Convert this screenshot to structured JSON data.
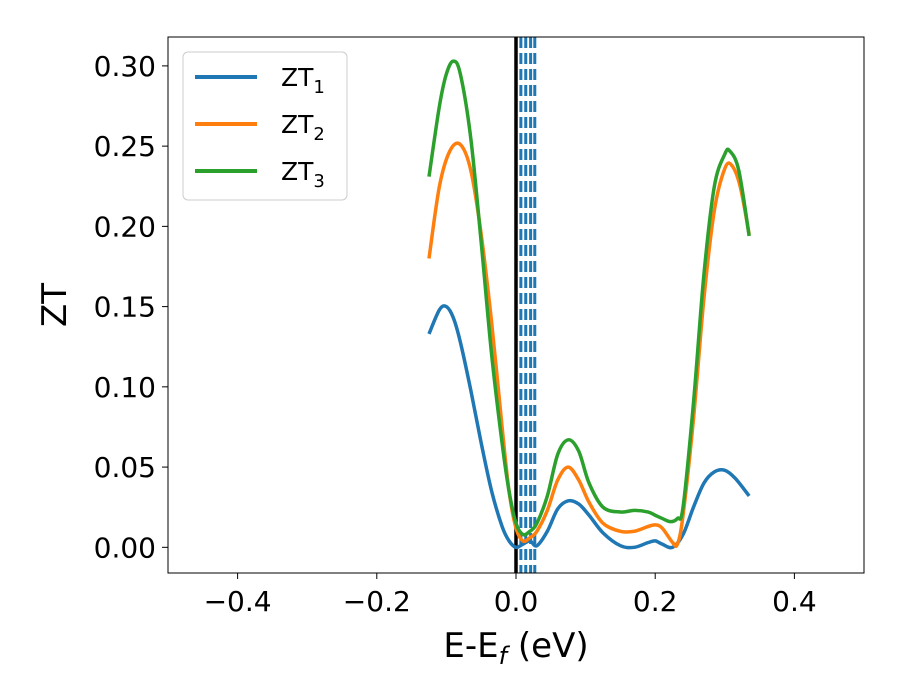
{
  "chart_data": {
    "type": "line",
    "xlabel": "E-E",
    "xlabel_sub": "f",
    "xlabel_unit": " (eV)",
    "ylabel": "ZT",
    "xlim": [
      -0.5,
      0.5
    ],
    "ylim": [
      -0.016,
      0.318
    ],
    "xticks": [
      -0.4,
      -0.2,
      0.0,
      0.2,
      0.4
    ],
    "xtick_labels": [
      "−0.4",
      "−0.2",
      "0.0",
      "0.2",
      "0.4"
    ],
    "yticks": [
      0.0,
      0.05,
      0.1,
      0.15,
      0.2,
      0.25,
      0.3
    ],
    "ytick_labels": [
      "0.00",
      "0.05",
      "0.10",
      "0.15",
      "0.20",
      "0.25",
      "0.30"
    ],
    "grid": false,
    "legend_position": "top-left",
    "vline_solid": {
      "x": 0.0,
      "color": "#000000"
    },
    "vlines_dashed": {
      "x": [
        0.007,
        0.014,
        0.021,
        0.027
      ],
      "color": "#1f77b4"
    },
    "series": [
      {
        "name": "ZT",
        "subscript": "1",
        "color": "#1f77b4",
        "x": [
          -0.125,
          -0.11,
          -0.1,
          -0.09,
          -0.08,
          -0.065,
          -0.05,
          -0.035,
          -0.02,
          -0.01,
          0.0,
          0.01,
          0.02,
          0.03,
          0.045,
          0.06,
          0.075,
          0.09,
          0.105,
          0.125,
          0.15,
          0.17,
          0.19,
          0.2,
          0.21,
          0.225,
          0.24,
          0.255,
          0.27,
          0.285,
          0.3,
          0.315,
          0.335
        ],
        "y": [
          0.133,
          0.148,
          0.15,
          0.143,
          0.128,
          0.098,
          0.065,
          0.035,
          0.013,
          0.004,
          0.0,
          0.002,
          0.004,
          0.001,
          0.01,
          0.024,
          0.029,
          0.027,
          0.02,
          0.009,
          0.001,
          0.0,
          0.003,
          0.004,
          0.002,
          0.0,
          0.008,
          0.025,
          0.04,
          0.047,
          0.048,
          0.043,
          0.032
        ]
      },
      {
        "name": "ZT",
        "subscript": "2",
        "color": "#ff7f0e",
        "x": [
          -0.125,
          -0.11,
          -0.095,
          -0.08,
          -0.065,
          -0.05,
          -0.035,
          -0.02,
          -0.01,
          0.0,
          0.01,
          0.02,
          0.03,
          0.045,
          0.06,
          0.075,
          0.09,
          0.105,
          0.125,
          0.15,
          0.17,
          0.19,
          0.2,
          0.21,
          0.225,
          0.232,
          0.24,
          0.255,
          0.27,
          0.285,
          0.3,
          0.31,
          0.322,
          0.335
        ],
        "y": [
          0.18,
          0.225,
          0.247,
          0.251,
          0.235,
          0.195,
          0.14,
          0.075,
          0.035,
          0.012,
          0.004,
          0.006,
          0.01,
          0.023,
          0.042,
          0.05,
          0.042,
          0.028,
          0.015,
          0.01,
          0.01,
          0.013,
          0.014,
          0.012,
          0.003,
          0.002,
          0.02,
          0.08,
          0.155,
          0.21,
          0.236,
          0.238,
          0.225,
          0.195
        ]
      },
      {
        "name": "ZT",
        "subscript": "3",
        "color": "#2ca02c",
        "x": [
          -0.125,
          -0.11,
          -0.1,
          -0.09,
          -0.08,
          -0.065,
          -0.05,
          -0.035,
          -0.02,
          -0.01,
          0.0,
          0.01,
          0.02,
          0.03,
          0.045,
          0.06,
          0.075,
          0.09,
          0.105,
          0.125,
          0.15,
          0.17,
          0.19,
          0.2,
          0.21,
          0.222,
          0.232,
          0.24,
          0.255,
          0.27,
          0.285,
          0.3,
          0.307,
          0.32,
          0.335
        ],
        "y": [
          0.231,
          0.275,
          0.295,
          0.303,
          0.295,
          0.255,
          0.19,
          0.12,
          0.065,
          0.035,
          0.015,
          0.008,
          0.01,
          0.015,
          0.032,
          0.058,
          0.067,
          0.06,
          0.04,
          0.025,
          0.022,
          0.023,
          0.022,
          0.02,
          0.018,
          0.016,
          0.018,
          0.025,
          0.09,
          0.17,
          0.225,
          0.245,
          0.247,
          0.235,
          0.194
        ]
      }
    ]
  }
}
